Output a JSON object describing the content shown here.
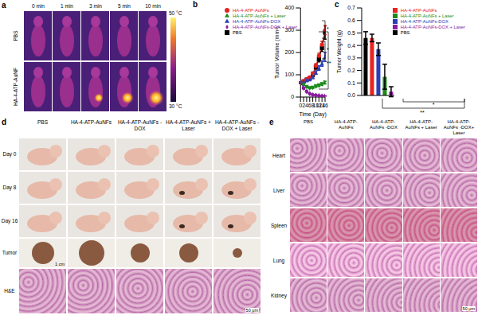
{
  "panel_labels": [
    "a",
    "b",
    "c",
    "d",
    "e"
  ],
  "panel_a": {
    "times": [
      "0 min",
      "1 min",
      "3 min",
      "5 min",
      "10 min"
    ],
    "rows": [
      "PBS",
      "HA-4-ATP-AuNF"
    ],
    "colorbar": {
      "range": [
        30,
        50
      ],
      "ticks": [
        {
          "value": 50,
          "label": "50 °C"
        },
        {
          "value": 30,
          "label": "30 °C"
        }
      ]
    }
  },
  "chart_data": [
    {
      "type": "line",
      "x": [
        0,
        2,
        4,
        6,
        8,
        10,
        12,
        14,
        16
      ],
      "xlim": [
        0,
        16
      ],
      "xticks": [
        0,
        2,
        4,
        6,
        8,
        10,
        12,
        14,
        16
      ],
      "ylim": [
        0,
        400
      ],
      "yticks": [
        0,
        100,
        200,
        300,
        400
      ],
      "x_label": "Time (Day)",
      "y_label": "Tumor Volume (mm³)",
      "legend": "upper left",
      "series": [
        {
          "name": "PBS",
          "color": "#000000",
          "marker": "square",
          "values": [
            65,
            70,
            78,
            85,
            100,
            135,
            170,
            220,
            290
          ],
          "errors": [
            3,
            4,
            5,
            6,
            8,
            10,
            12,
            15,
            30
          ]
        },
        {
          "name": "HA-4-ATP-AuNFs",
          "color": "#e8221f",
          "marker": "circle",
          "values": [
            65,
            72,
            80,
            88,
            105,
            140,
            185,
            235,
            300
          ],
          "errors": [
            3,
            4,
            5,
            6,
            8,
            10,
            12,
            15,
            20
          ]
        },
        {
          "name": "HA-4-ATP-AuNFs-DOX",
          "color": "#2b3eb5",
          "marker": "triangle",
          "values": [
            65,
            70,
            75,
            80,
            90,
            110,
            130,
            150,
            180
          ],
          "errors": [
            3,
            3,
            4,
            5,
            6,
            8,
            10,
            12,
            20
          ]
        },
        {
          "name": "HA-4-ATP-AuNFs + Laser",
          "color": "#1a8a1a",
          "marker": "triangle-down",
          "values": [
            65,
            55,
            45,
            40,
            42,
            48,
            52,
            58,
            65
          ],
          "errors": [
            3,
            3,
            3,
            3,
            3,
            4,
            4,
            5,
            6
          ]
        },
        {
          "name": "HA-4-ATP-AuNFs-DOX + Laser",
          "color": "#8b1a9e",
          "marker": "diamond",
          "values": [
            65,
            40,
            25,
            15,
            10,
            8,
            6,
            5,
            5
          ],
          "errors": [
            3,
            3,
            2,
            2,
            2,
            2,
            1,
            1,
            1
          ]
        }
      ],
      "annotations": [
        "*",
        "*",
        "**"
      ]
    },
    {
      "type": "bar",
      "categories": [
        null
      ],
      "ylim": [
        0,
        0.7
      ],
      "yticks": [
        {
          "value": 0,
          "label": "0.0"
        },
        {
          "value": 0.1,
          "label": "0.1"
        },
        {
          "value": 0.2,
          "label": "0.2"
        },
        {
          "value": 0.3,
          "label": "0.3"
        },
        {
          "value": 0.4,
          "label": "0.4"
        },
        {
          "value": 0.5,
          "label": "0.5"
        },
        {
          "value": 0.6,
          "label": "0.6"
        },
        {
          "value": 0.7,
          "label": "0.7"
        }
      ],
      "y_label": "Tumor Weight (g)",
      "tick_labels": "y",
      "legend": "upper right",
      "series": [
        {
          "name": "PBS",
          "color": "#000000",
          "values": [
            0.46
          ],
          "errors": [
            0.05
          ]
        },
        {
          "name": "HA-4-ATP-AuNFs",
          "color": "#e8221f",
          "values": [
            0.46
          ],
          "errors": [
            0.03
          ]
        },
        {
          "name": "HA-4-ATP-AuNFs-DOX",
          "color": "#2b3eb5",
          "values": [
            0.37
          ],
          "errors": [
            0.05
          ]
        },
        {
          "name": "HA-4-ATP-AuNFs + Laser",
          "color": "#1a8a1a",
          "values": [
            0.15
          ],
          "errors": [
            0.1
          ]
        },
        {
          "name": "HA-4-ATP-AuNFs-DOX + Laser",
          "color": "#8b1a9e",
          "values": [
            0.03
          ],
          "errors": [
            0.04
          ]
        }
      ],
      "annotations": [
        "*",
        "**"
      ]
    }
  ],
  "panel_d": {
    "columns": [
      "PBS",
      "HA-4-ATP-AuNFs",
      "HA-4-ATP-AuNFs -DOX",
      "HA-4-ATP-AuNFs + Laser",
      "HA-4-ATP-AuNFs -DOX + Laser"
    ],
    "rows": [
      "Day 0",
      "Day 8",
      "Day 16",
      "Tumor",
      "H&E"
    ],
    "scale_bars": [
      "1 cm",
      "50 μm"
    ]
  },
  "panel_e": {
    "columns": [
      "PBS",
      "HA-4-ATP-AuNFs",
      "HA-4-ATP-AuNFs -DOX",
      "HA-4-ATP-AuNFs + Laser",
      "HA-4-ATP-AuNFs -DOX+ Laser"
    ],
    "rows": [
      "Heart",
      "Liver",
      "Spleen",
      "Lung",
      "Kidney"
    ],
    "scale_bar": "50 μm"
  }
}
